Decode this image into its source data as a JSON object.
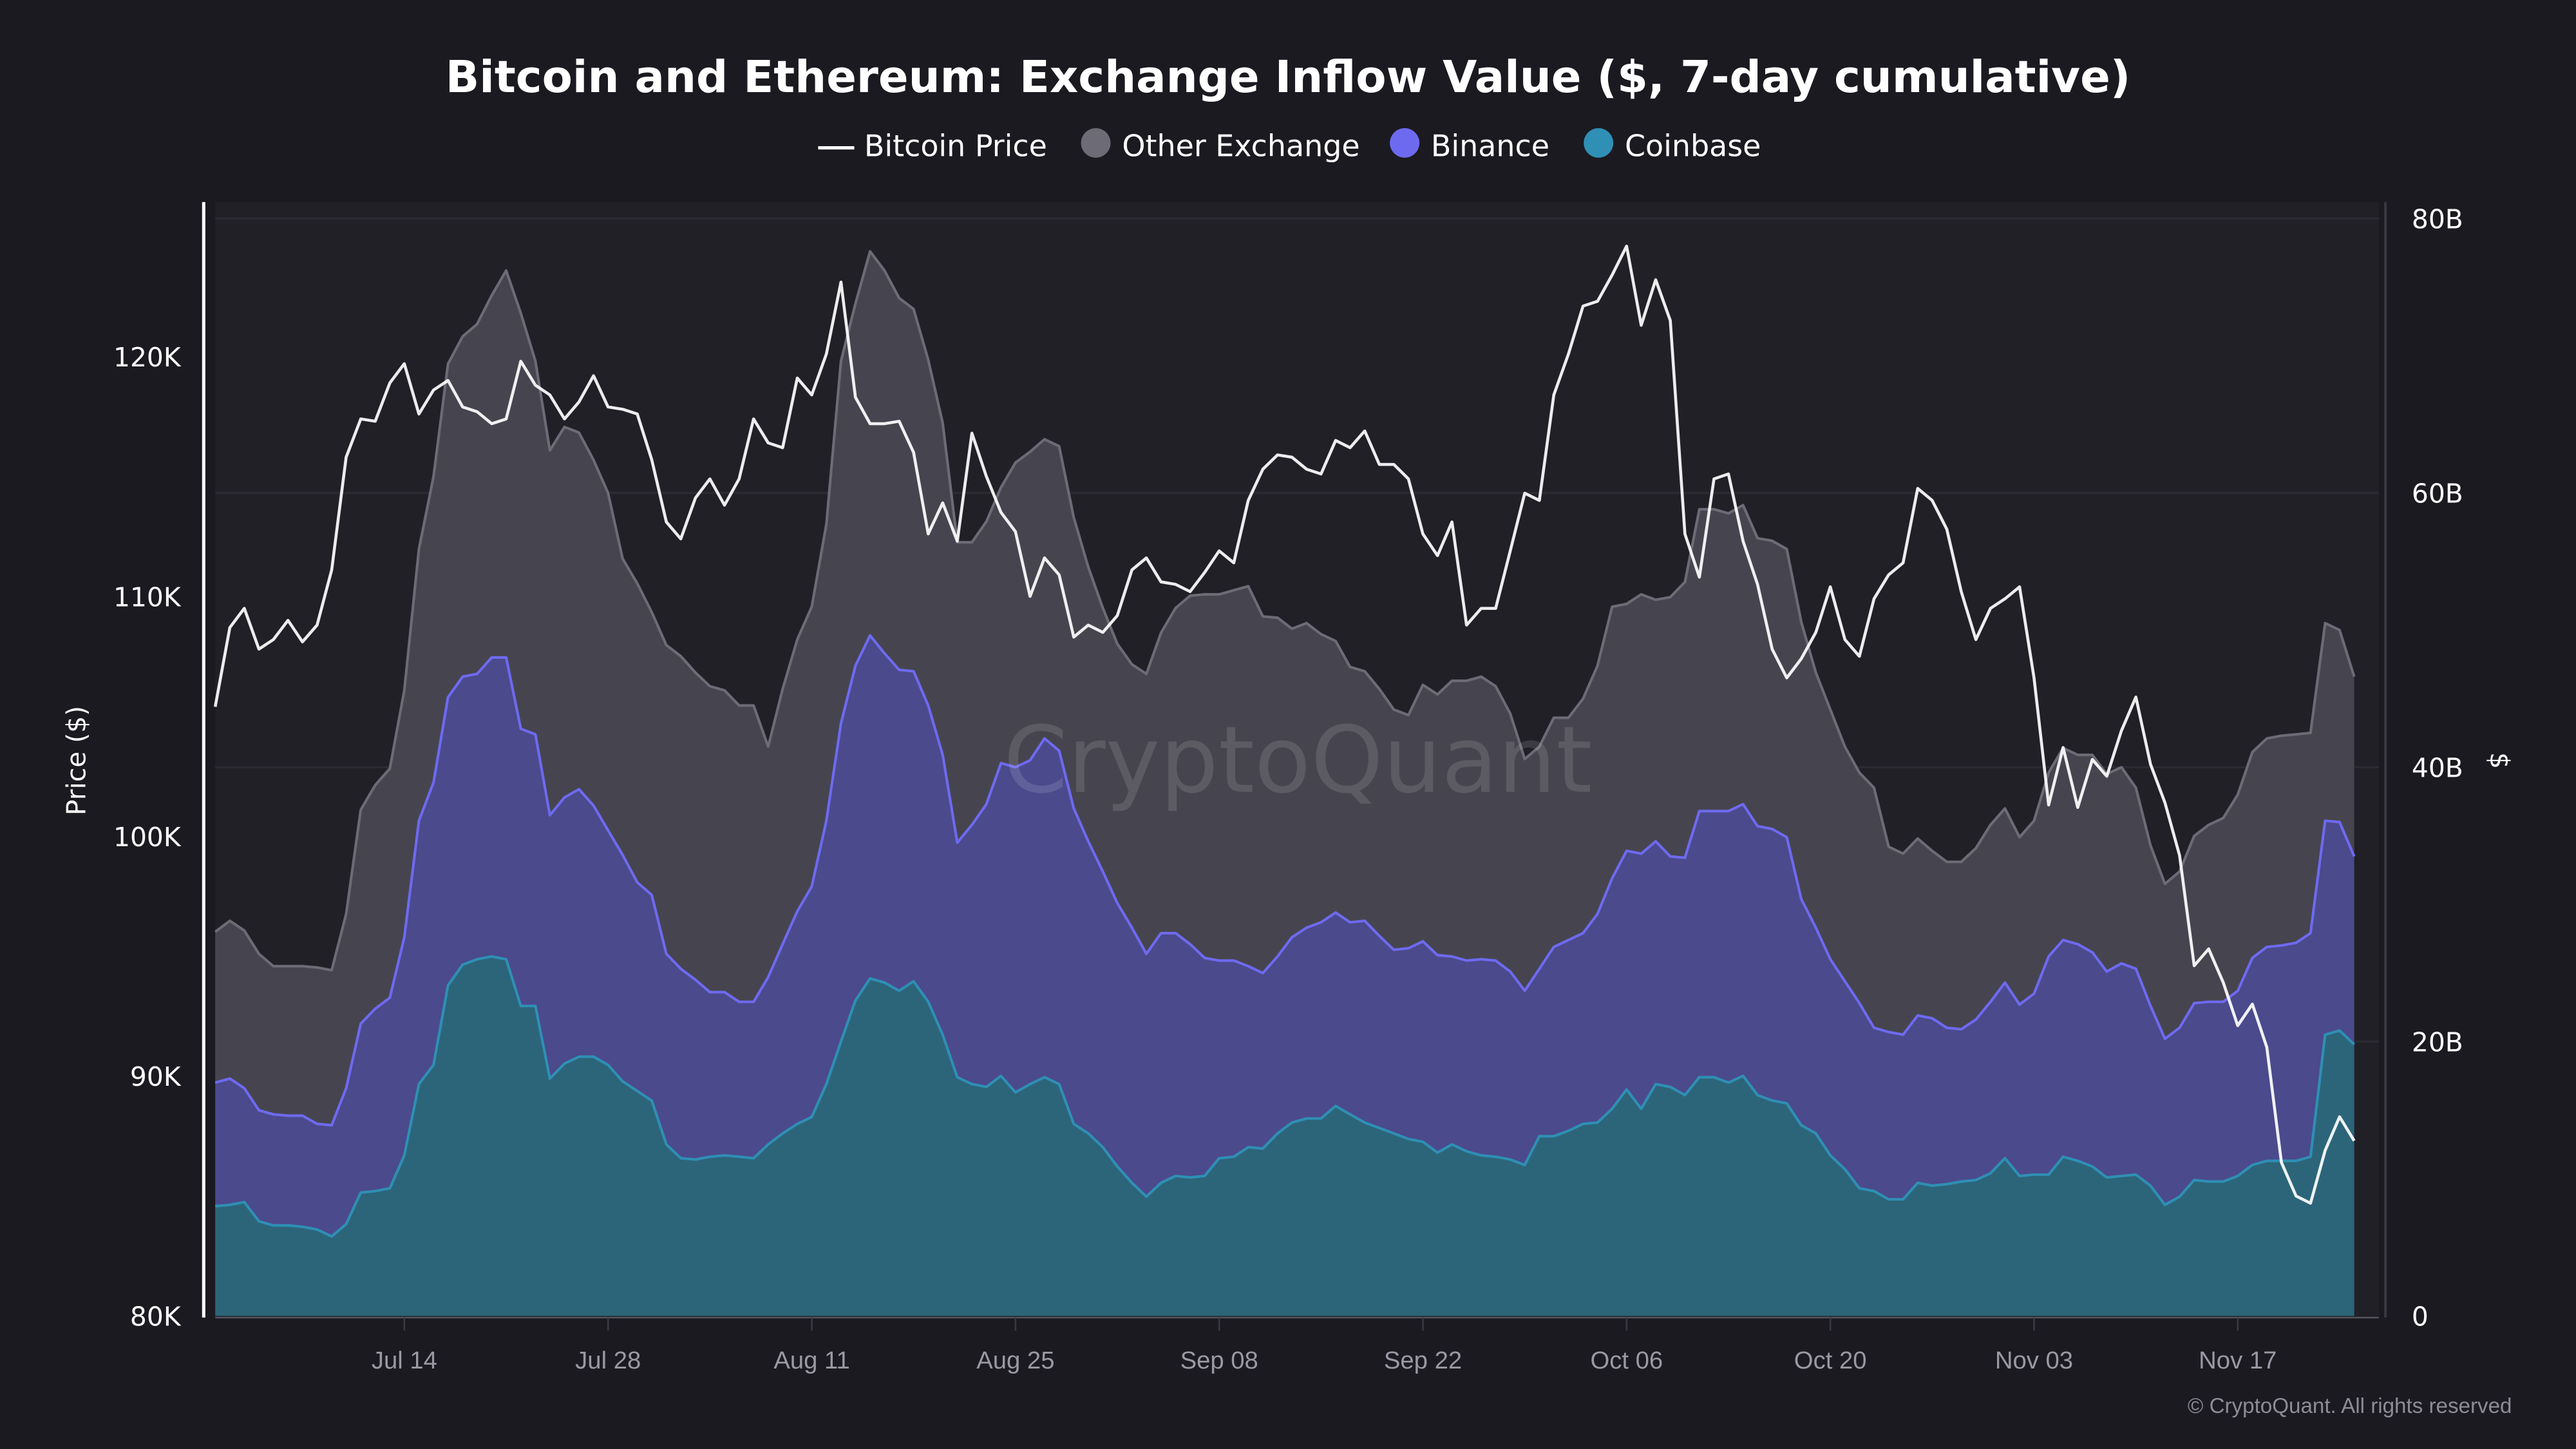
{
  "chart_data": {
    "type": "area",
    "stacked": true,
    "title": "Bitcoin and Ethereum: Exchange Inflow Value ($, 7-day cumulative)",
    "ylabel_left": "Price ($)",
    "ylabel_right": "$",
    "ylim_left": [
      80000,
      126000
    ],
    "ylim_right": [
      0,
      81
    ],
    "y_ticks_left": [
      "120K",
      "110K",
      "100K",
      "90K",
      "80K"
    ],
    "y_ticks_left_values": [
      120000,
      110000,
      100000,
      90000,
      80000
    ],
    "y_ticks_right": [
      "80B",
      "60B",
      "40B",
      "20B",
      "0"
    ],
    "y_ticks_right_values": [
      80,
      60,
      40,
      20,
      0
    ],
    "x_ticks": [
      "Jul 14",
      "Jul 28",
      "Aug 11",
      "Aug 25",
      "Sep 08",
      "Sep 22",
      "Oct 06",
      "Oct 20",
      "Nov 03",
      "Nov 17"
    ],
    "grid": true,
    "legend_position": "top",
    "legend": [
      {
        "name": "Bitcoin Price",
        "marker": "line",
        "color": "#ffffff"
      },
      {
        "name": "Other Exchange",
        "marker": "circle",
        "color": "#6c6b76"
      },
      {
        "name": "Binance",
        "marker": "circle",
        "color": "#6e6af0"
      },
      {
        "name": "Coinbase",
        "marker": "circle",
        "color": "#2f8fb5"
      }
    ],
    "x": [
      "Jul 01",
      "Jul 02",
      "Jul 03",
      "Jul 04",
      "Jul 05",
      "Jul 06",
      "Jul 07",
      "Jul 08",
      "Jul 09",
      "Jul 10",
      "Jul 11",
      "Jul 12",
      "Jul 13",
      "Jul 14",
      "Jul 15",
      "Jul 16",
      "Jul 17",
      "Jul 18",
      "Jul 19",
      "Jul 20",
      "Jul 21",
      "Jul 22",
      "Jul 23",
      "Jul 24",
      "Jul 25",
      "Jul 26",
      "Jul 27",
      "Jul 28",
      "Jul 29",
      "Jul 30",
      "Jul 31",
      "Aug 01",
      "Aug 02",
      "Aug 03",
      "Aug 04",
      "Aug 05",
      "Aug 06",
      "Aug 07",
      "Aug 08",
      "Aug 09",
      "Aug 10",
      "Aug 11",
      "Aug 12",
      "Aug 13",
      "Aug 14",
      "Aug 15",
      "Aug 16",
      "Aug 17",
      "Aug 18",
      "Aug 19",
      "Aug 20",
      "Aug 21",
      "Aug 22",
      "Aug 23",
      "Aug 24",
      "Aug 25",
      "Aug 26",
      "Aug 27",
      "Aug 28",
      "Aug 29",
      "Aug 30",
      "Aug 31",
      "Sep 01",
      "Sep 02",
      "Sep 03",
      "Sep 04",
      "Sep 05",
      "Sep 06",
      "Sep 07",
      "Sep 08",
      "Sep 09",
      "Sep 10",
      "Sep 11",
      "Sep 12",
      "Sep 13",
      "Sep 14",
      "Sep 15",
      "Sep 16",
      "Sep 17",
      "Sep 18",
      "Sep 19",
      "Sep 20",
      "Sep 21",
      "Sep 22",
      "Sep 23",
      "Sep 24",
      "Sep 25",
      "Sep 26",
      "Sep 27",
      "Sep 28",
      "Sep 29",
      "Sep 30",
      "Oct 01",
      "Oct 02",
      "Oct 03",
      "Oct 04",
      "Oct 05",
      "Oct 06",
      "Oct 07",
      "Oct 08",
      "Oct 09",
      "Oct 10",
      "Oct 11",
      "Oct 12",
      "Oct 13",
      "Oct 14",
      "Oct 15",
      "Oct 16",
      "Oct 17",
      "Oct 18",
      "Oct 19",
      "Oct 20",
      "Oct 21",
      "Oct 22",
      "Oct 23",
      "Oct 24",
      "Oct 25",
      "Oct 26",
      "Oct 27",
      "Oct 28",
      "Oct 29",
      "Oct 30",
      "Oct 31",
      "Nov 01",
      "Nov 02",
      "Nov 03",
      "Nov 04",
      "Nov 05",
      "Nov 06",
      "Nov 07",
      "Nov 08",
      "Nov 09",
      "Nov 10",
      "Nov 11",
      "Nov 12",
      "Nov 13",
      "Nov 14",
      "Nov 15",
      "Nov 16",
      "Nov 17",
      "Nov 18",
      "Nov 19",
      "Nov 20",
      "Nov 21",
      "Nov 22",
      "Nov 23",
      "Nov 24",
      "Nov 25"
    ],
    "series": [
      {
        "name": "Coinbase",
        "axis": "right",
        "unit": "B",
        "fill": "#2c6579",
        "stroke": "#2f8fb5",
        "values": [
          8.0,
          8.1,
          8.3,
          6.9,
          6.6,
          6.6,
          6.5,
          6.3,
          5.8,
          6.7,
          9.0,
          9.1,
          9.3,
          11.7,
          16.9,
          18.3,
          24.1,
          25.6,
          26.0,
          26.2,
          26.0,
          22.6,
          22.6,
          17.3,
          18.4,
          18.9,
          18.9,
          18.3,
          17.1,
          16.4,
          15.7,
          12.5,
          11.5,
          11.4,
          11.6,
          11.7,
          11.6,
          11.5,
          12.5,
          13.3,
          14.0,
          14.5,
          16.9,
          20.0,
          23.0,
          24.6,
          24.3,
          23.7,
          24.4,
          22.9,
          20.5,
          17.4,
          16.9,
          16.7,
          17.5,
          16.3,
          16.9,
          17.4,
          16.9,
          14.0,
          13.3,
          12.3,
          10.9,
          9.7,
          8.7,
          9.7,
          10.2,
          10.1,
          10.2,
          11.5,
          11.6,
          12.3,
          12.2,
          13.3,
          14.1,
          14.4,
          14.4,
          15.3,
          14.7,
          14.1,
          13.7,
          13.3,
          12.9,
          12.7,
          11.9,
          12.5,
          12.0,
          11.7,
          11.6,
          11.4,
          11.0,
          13.1,
          13.1,
          13.5,
          14.0,
          14.1,
          15.1,
          16.5,
          15.1,
          16.9,
          16.7,
          16.1,
          17.4,
          17.4,
          17.0,
          17.5,
          16.1,
          15.7,
          15.5,
          13.9,
          13.3,
          11.7,
          10.7,
          9.3,
          9.1,
          8.5,
          8.5,
          9.7,
          9.5,
          9.6,
          9.8,
          9.9,
          10.4,
          11.5,
          10.2,
          10.3,
          10.3,
          11.6,
          11.3,
          10.9,
          10.1,
          10.2,
          10.3,
          9.5,
          8.1,
          8.7,
          9.9,
          9.8,
          9.8,
          10.2,
          11.0,
          11.3,
          11.3,
          11.3,
          11.6,
          20.5,
          20.8,
          19.8
        ]
      },
      {
        "name": "Binance",
        "axis": "right",
        "unit": "B",
        "fill": "#4b4a8c",
        "stroke": "#6e6af0",
        "values": [
          9.0,
          9.2,
          8.3,
          8.1,
          8.1,
          8.0,
          8.1,
          7.7,
          8.1,
          9.9,
          12.3,
          13.3,
          13.9,
          15.9,
          19.2,
          20.6,
          21.0,
          21.0,
          20.8,
          21.8,
          22.0,
          20.2,
          19.8,
          19.2,
          19.4,
          19.5,
          18.3,
          17.1,
          16.5,
          15.2,
          15.0,
          13.9,
          13.8,
          13.1,
          12.0,
          11.9,
          11.3,
          11.4,
          12.2,
          13.8,
          15.5,
          16.8,
          19.2,
          23.2,
          24.4,
          25.0,
          24.0,
          23.4,
          22.6,
          21.6,
          20.4,
          17.1,
          18.9,
          20.6,
          22.8,
          23.7,
          23.6,
          24.7,
          24.3,
          23.0,
          21.3,
          20.1,
          19.2,
          18.6,
          17.7,
          18.2,
          17.7,
          17.0,
          15.9,
          14.4,
          14.3,
          13.2,
          12.8,
          12.9,
          13.5,
          13.9,
          14.3,
          14.1,
          14.0,
          14.7,
          14.0,
          13.4,
          13.9,
          14.6,
          14.4,
          13.7,
          13.9,
          14.3,
          14.3,
          13.7,
          12.7,
          12.2,
          13.8,
          13.9,
          13.9,
          15.2,
          16.8,
          17.4,
          18.6,
          17.7,
          16.8,
          17.3,
          19.4,
          19.4,
          19.8,
          19.8,
          19.6,
          19.8,
          19.4,
          16.5,
          15.0,
          14.3,
          13.7,
          13.5,
          11.9,
          12.2,
          12.0,
          12.2,
          12.2,
          11.4,
          11.1,
          11.7,
          12.5,
          12.8,
          12.5,
          13.2,
          15.9,
          15.8,
          15.8,
          15.6,
          15.0,
          15.5,
          15.0,
          13.1,
          12.1,
          12.3,
          12.9,
          13.1,
          13.1,
          13.5,
          15.1,
          15.6,
          15.7,
          15.9,
          16.3,
          15.6,
          15.2,
          13.7
        ]
      },
      {
        "name": "Other Exchange",
        "axis": "right",
        "unit": "B",
        "fill": "#46454f",
        "stroke": "#6c6b76",
        "values": [
          11.0,
          11.5,
          11.5,
          11.4,
          10.8,
          10.9,
          10.9,
          11.4,
          11.3,
          12.7,
          15.6,
          16.3,
          16.7,
          18.0,
          19.8,
          22.3,
          24.3,
          24.8,
          25.5,
          26.4,
          28.2,
          30.3,
          27.2,
          26.6,
          27.0,
          26.0,
          25.2,
          24.6,
          21.6,
          21.8,
          20.6,
          22.5,
          22.8,
          22.4,
          22.3,
          22.0,
          21.6,
          21.6,
          16.8,
          18.6,
          19.8,
          20.4,
          21.6,
          26.4,
          26.4,
          28.0,
          27.9,
          27.1,
          26.4,
          25.2,
          24.2,
          21.9,
          20.6,
          20.6,
          20.1,
          22.2,
          22.5,
          21.8,
          22.2,
          21.2,
          20.0,
          19.2,
          18.9,
          19.2,
          20.4,
          21.9,
          23.7,
          25.4,
          26.5,
          26.7,
          27.0,
          27.7,
          26.0,
          24.7,
          22.5,
          22.2,
          21.0,
          19.8,
          18.6,
          18.2,
          18.0,
          17.5,
          17.0,
          18.7,
          19.0,
          20.1,
          20.4,
          20.6,
          20.0,
          18.8,
          16.9,
          16.2,
          16.7,
          16.2,
          17.1,
          18.1,
          19.8,
          18.0,
          18.9,
          17.6,
          18.9,
          20.1,
          22.0,
          22.0,
          21.7,
          21.8,
          21.0,
          21.0,
          21.0,
          20.2,
          18.6,
          18.2,
          17.1,
          16.8,
          17.5,
          13.5,
          13.2,
          12.9,
          12.2,
          12.1,
          12.2,
          12.5,
          12.9,
          12.7,
          12.2,
          12.6,
          13.4,
          14.0,
          13.8,
          14.4,
          14.4,
          14.3,
          13.2,
          11.7,
          11.3,
          11.4,
          12.2,
          12.9,
          13.4,
          14.3,
          15.0,
          15.2,
          15.3,
          15.2,
          14.6,
          14.4,
          14.0,
          13.1
        ]
      },
      {
        "name": "Bitcoin Price",
        "axis": "left",
        "unit": "K USD",
        "type": "line",
        "stroke": "#ffffff",
        "values": [
          105.4,
          108.7,
          109.5,
          107.8,
          108.2,
          109.0,
          108.1,
          108.8,
          111.1,
          115.8,
          117.4,
          117.3,
          118.9,
          119.7,
          117.6,
          118.6,
          119.0,
          117.9,
          117.7,
          117.2,
          117.4,
          119.8,
          118.8,
          118.4,
          117.4,
          118.1,
          119.2,
          117.9,
          117.8,
          117.6,
          115.7,
          113.1,
          112.4,
          114.1,
          114.9,
          113.8,
          114.9,
          117.4,
          116.4,
          116.2,
          119.1,
          118.4,
          120.1,
          123.1,
          118.3,
          117.2,
          117.2,
          117.3,
          116.0,
          112.6,
          113.9,
          112.3,
          116.8,
          115.0,
          113.5,
          112.7,
          110.0,
          111.6,
          110.9,
          108.3,
          108.8,
          108.5,
          109.2,
          111.1,
          111.6,
          110.6,
          110.5,
          110.2,
          111.0,
          111.9,
          111.4,
          114.0,
          115.3,
          115.9,
          115.8,
          115.3,
          115.1,
          116.5,
          116.2,
          116.9,
          115.5,
          115.5,
          114.9,
          112.6,
          111.7,
          113.1,
          108.8,
          109.5,
          109.5,
          111.9,
          114.3,
          114.0,
          118.4,
          120.1,
          122.1,
          122.3,
          123.4,
          124.6,
          121.3,
          123.2,
          121.5,
          112.6,
          110.8,
          114.9,
          115.1,
          112.3,
          110.5,
          107.8,
          106.6,
          107.4,
          108.5,
          110.4,
          108.2,
          107.5,
          109.9,
          110.9,
          111.4,
          114.5,
          114.0,
          112.8,
          110.2,
          108.2,
          109.5,
          109.9,
          110.4,
          106.6,
          101.3,
          103.7,
          101.2,
          103.2,
          102.5,
          104.4,
          105.8,
          103.0,
          101.4,
          99.2,
          94.6,
          95.3,
          93.9,
          92.1,
          93.0,
          91.2,
          86.4,
          85.0,
          84.7,
          86.9,
          88.3,
          87.3
        ]
      }
    ],
    "watermark": "CryptoQuant",
    "copyright": "© CryptoQuant. All rights reserved"
  }
}
